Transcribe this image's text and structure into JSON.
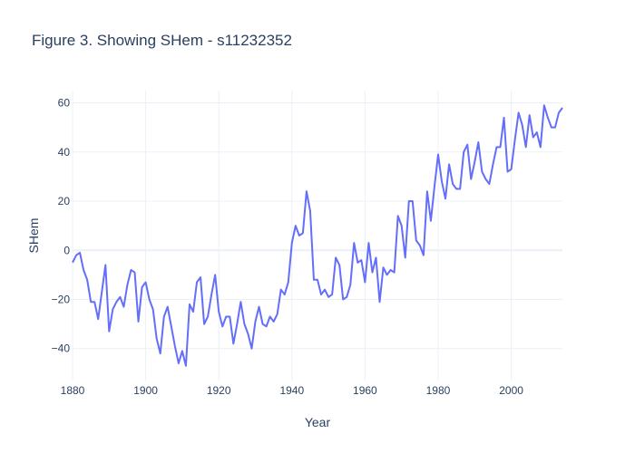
{
  "chart_data": {
    "type": "line",
    "title": "Figure 3. Showing SHem - s11232352",
    "xlabel": "Year",
    "ylabel": "SHem",
    "xlim": [
      1880,
      2014
    ],
    "ylim": [
      -53,
      65
    ],
    "x_ticks": [
      1880,
      1900,
      1920,
      1940,
      1960,
      1980,
      2000
    ],
    "y_ticks": [
      -40,
      -20,
      0,
      20,
      40,
      60
    ],
    "grid": true,
    "line_color": "#636efa",
    "series": [
      {
        "x": [
          1880,
          1881,
          1882,
          1883,
          1884,
          1885,
          1886,
          1887,
          1888,
          1889,
          1890,
          1891,
          1892,
          1893,
          1894,
          1895,
          1896,
          1897,
          1898,
          1899,
          1900,
          1901,
          1902,
          1903,
          1904,
          1905,
          1906,
          1907,
          1908,
          1909,
          1910,
          1911,
          1912,
          1913,
          1914,
          1915,
          1916,
          1917,
          1918,
          1919,
          1920,
          1921,
          1922,
          1923,
          1924,
          1925,
          1926,
          1927,
          1928,
          1929,
          1930,
          1931,
          1932,
          1933,
          1934,
          1935,
          1936,
          1937,
          1938,
          1939,
          1940,
          1941,
          1942,
          1943,
          1944,
          1945,
          1946,
          1947,
          1948,
          1949,
          1950,
          1951,
          1952,
          1953,
          1954,
          1955,
          1956,
          1957,
          1958,
          1959,
          1960,
          1961,
          1962,
          1963,
          1964,
          1965,
          1966,
          1967,
          1968,
          1969,
          1970,
          1971,
          1972,
          1973,
          1974,
          1975,
          1976,
          1977,
          1978,
          1979,
          1980,
          1981,
          1982,
          1983,
          1984,
          1985,
          1986,
          1987,
          1988,
          1989,
          1990,
          1991,
          1992,
          1993,
          1994,
          1995,
          1996,
          1997,
          1998,
          1999,
          2000,
          2001,
          2002,
          2003,
          2004,
          2005,
          2006,
          2007,
          2008,
          2009,
          2010,
          2011,
          2012,
          2013,
          2014
        ],
        "values": [
          -5,
          -2,
          -1,
          -8,
          -12,
          -21,
          -21,
          -28,
          -17,
          -6,
          -33,
          -24,
          -21,
          -19,
          -23,
          -14,
          -8,
          -9,
          -29,
          -15,
          -13,
          -20,
          -24,
          -36,
          -42,
          -27,
          -23,
          -31,
          -39,
          -46,
          -41,
          -47,
          -22,
          -25,
          -13,
          -11,
          -30,
          -27,
          -18,
          -10,
          -25,
          -31,
          -27,
          -27,
          -38,
          -30,
          -21,
          -30,
          -34,
          -40,
          -29,
          -23,
          -30,
          -31,
          -27,
          -29,
          -26,
          -16,
          -18,
          -13,
          3,
          10,
          6,
          7,
          24,
          16,
          -12,
          -12,
          -18,
          -16,
          -19,
          -18,
          -3,
          -6,
          -20,
          -19,
          -14,
          3,
          -5,
          -4,
          -13,
          3,
          -9,
          -3,
          -21,
          -7,
          -10,
          -8,
          -9,
          14,
          10,
          -3,
          20,
          20,
          4,
          2,
          -2,
          24,
          12,
          26,
          39,
          28,
          21,
          35,
          27,
          25,
          25,
          40,
          43,
          29,
          36,
          44,
          32,
          29,
          27,
          35,
          42,
          42,
          54,
          32,
          33,
          45,
          56,
          51,
          42,
          55,
          46,
          48,
          42,
          59,
          54,
          50,
          50,
          56,
          58
        ]
      }
    ]
  }
}
